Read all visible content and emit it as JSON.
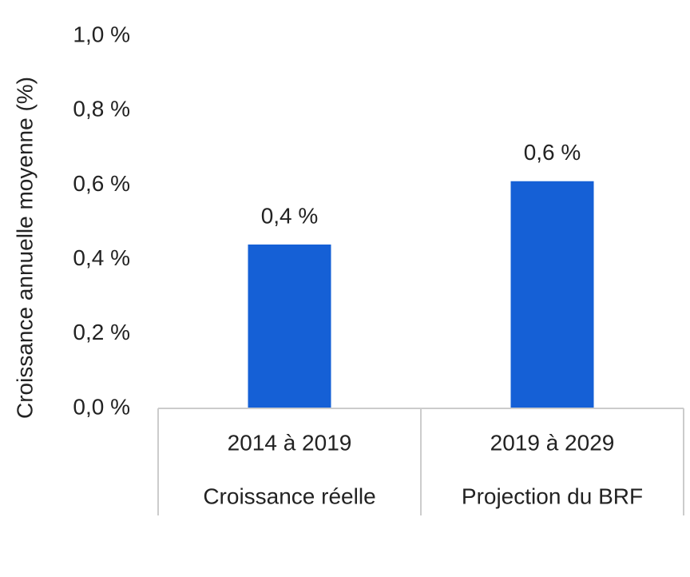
{
  "chart_data": {
    "type": "bar",
    "ylabel": "Croissance annuelle moyenne (%)",
    "ylim": [
      0,
      1.0
    ],
    "ytick_values": [
      0,
      0.2,
      0.4,
      0.6,
      0.8,
      1.0
    ],
    "ytick_labels": [
      "0,0 %",
      "0,2 %",
      "0,4 %",
      "0,6 %",
      "0,8 %",
      "1,0 %"
    ],
    "categories": [
      "2014 à 2019",
      "2019 à 2029"
    ],
    "category_groups": [
      "Croissance réelle",
      "Projection du BRF"
    ],
    "values": [
      0.44,
      0.61
    ],
    "data_labels": [
      "0,4 %",
      "0,6 %"
    ],
    "bar_color": "#1560D6",
    "grid": false,
    "legend": "none"
  }
}
